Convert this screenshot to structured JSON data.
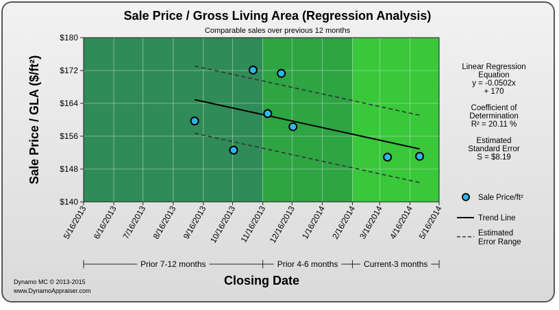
{
  "chart_data": {
    "type": "scatter",
    "title": "Sale Price / Gross Living Area (Regression Analysis)",
    "subtitle": "Comparable sales over previous 12 months",
    "xlabel": "Closing Date",
    "ylabel": "Sale Price / GLA ($/ft²)",
    "x_ticks": [
      "5/16/2013",
      "6/16/2013",
      "7/16/2013",
      "8/16/2013",
      "9/16/2013",
      "10/16/2013",
      "11/16/2013",
      "12/16/2013",
      "1/16/2014",
      "2/16/2014",
      "3/16/2014",
      "4/16/2014",
      "5/16/2014"
    ],
    "y_ticks": [
      "$180",
      "$172",
      "$164",
      "$156",
      "$148",
      "$140"
    ],
    "xlim": [
      "5/16/2013",
      "5/16/2014"
    ],
    "ylim": [
      140,
      180
    ],
    "grid": true,
    "series": [
      {
        "name": "Sale Price/ft²",
        "points": [
          {
            "x": "9/7/2013",
            "y": 159.7
          },
          {
            "x": "10/17/2013",
            "y": 152.6
          },
          {
            "x": "11/6/2013",
            "y": 172.1
          },
          {
            "x": "11/21/2013",
            "y": 161.5
          },
          {
            "x": "12/5/2013",
            "y": 171.3
          },
          {
            "x": "12/17/2013",
            "y": 158.3
          },
          {
            "x": "3/24/2014",
            "y": 150.9
          },
          {
            "x": "4/26/2014",
            "y": 151.1
          }
        ]
      }
    ],
    "trend_line": {
      "name": "Trend Line",
      "from": {
        "x": "9/7/2013",
        "y": 164.9
      },
      "to": {
        "x": "4/26/2014",
        "y": 152.9
      }
    },
    "error_range": {
      "name": "Estimated Error Range",
      "offset": 8.19
    },
    "zones": [
      {
        "label": "Prior 7-12 months",
        "from": "5/16/2013",
        "to": "11/16/2013",
        "color": "#2f8b57"
      },
      {
        "label": "Prior 4-6 months",
        "from": "11/16/2013",
        "to": "2/16/2014",
        "color": "#2ea443"
      },
      {
        "label": "Current-3 months",
        "from": "2/16/2014",
        "to": "5/16/2014",
        "color": "#38c83a"
      }
    ],
    "legend_position": "right",
    "stats": [
      {
        "lines": [
          "Linear Regression",
          "Equation",
          "y = -0.0502x",
          "+ 170"
        ]
      },
      {
        "lines": [
          "Coefficient of",
          "Determination",
          "R² = 20.11 %"
        ]
      },
      {
        "lines": [
          "Estimated",
          "Standard Error",
          "S = $8.19"
        ]
      }
    ],
    "legend": [
      {
        "kind": "marker",
        "lines": [
          "Sale Price/ft²"
        ]
      },
      {
        "kind": "line",
        "lines": [
          "Trend Line"
        ]
      },
      {
        "kind": "dashed",
        "lines": [
          "Estimated",
          "Error Range"
        ]
      }
    ],
    "colors": {
      "marker_fill": "#2fb6e8",
      "trend": "#000000",
      "error": "#333333"
    }
  },
  "footer": {
    "line1": "Dynamo MC   © 2013-2015",
    "line2": "www.DynamoAppraiser.com"
  }
}
